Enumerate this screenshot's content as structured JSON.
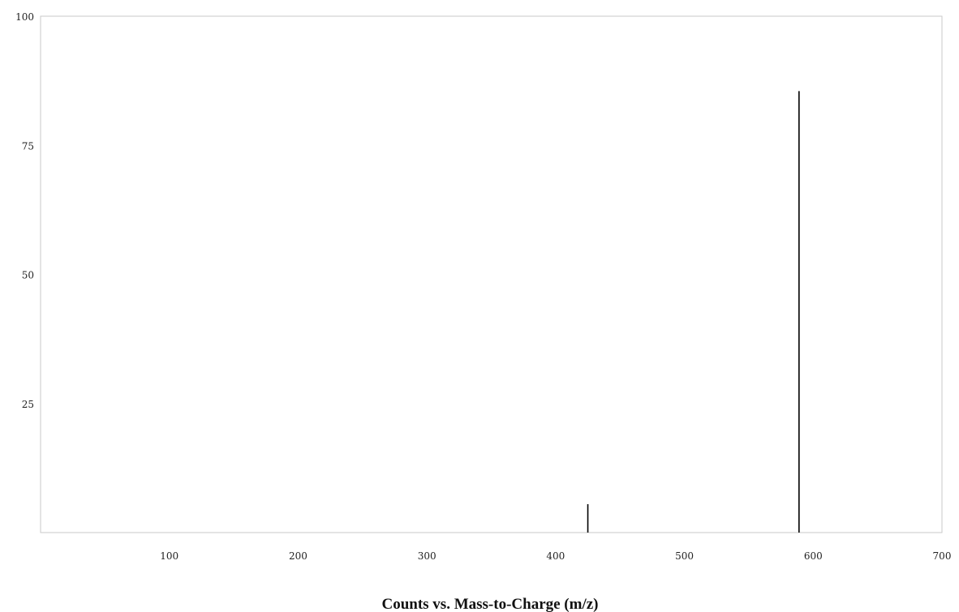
{
  "chart_data": {
    "type": "bar",
    "title": "",
    "xlabel": "Counts vs. Mass-to-Charge (m/z)",
    "ylabel": "",
    "xlim": [
      0,
      700
    ],
    "ylim": [
      0,
      100
    ],
    "x_ticks": [
      100,
      200,
      300,
      400,
      500,
      600,
      700
    ],
    "y_ticks": [
      25,
      50,
      75,
      100
    ],
    "grid": false,
    "legend": "none",
    "series": [
      {
        "x": [
          425,
          589
        ],
        "values": [
          5.5,
          85.5
        ]
      }
    ],
    "colors": {
      "peaks": "#000000",
      "frame": "#c8c8c8",
      "text": "#222222"
    }
  }
}
